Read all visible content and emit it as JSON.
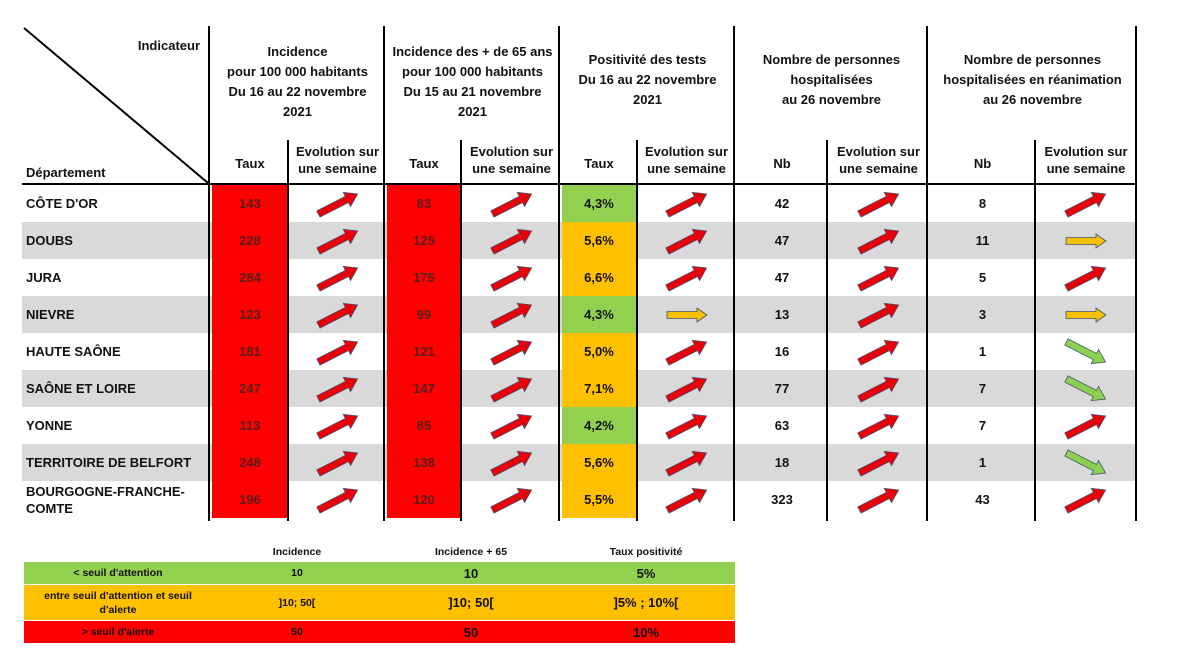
{
  "header": {
    "indicateur": "Indicateur",
    "departement": "Département",
    "groups": [
      {
        "lines": [
          "Incidence",
          "pour 100 000 habitants",
          "Du 16 au 22 novembre",
          "2021"
        ]
      },
      {
        "lines": [
          "Incidence des + de 65 ans",
          "pour 100 000 habitants",
          "Du 15 au 21 novembre",
          "2021"
        ]
      },
      {
        "lines": [
          "Positivité des tests",
          "Du 16 au 22 novembre",
          "2021"
        ]
      },
      {
        "lines": [
          "Nombre de personnes",
          "hospitalisées",
          "au 26 novembre"
        ]
      },
      {
        "lines": [
          "Nombre de personnes",
          "hospitalisées en réanimation",
          "au 26 novembre"
        ]
      }
    ],
    "subcols": [
      [
        "Taux"
      ],
      [
        "Evolution sur",
        "une semaine"
      ],
      [
        "Taux"
      ],
      [
        "Evolution sur",
        "une semaine"
      ],
      [
        "Taux"
      ],
      [
        "Evolution sur",
        "une semaine"
      ],
      [
        "Nb"
      ],
      [
        "Evolution sur",
        "une semaine"
      ],
      [
        "Nb"
      ],
      [
        "Evolution sur",
        "une semaine"
      ]
    ]
  },
  "colors": {
    "red": "#ff0000",
    "orange": "#ffc000",
    "green": "#92d050",
    "gray_band": "#d9d9d9",
    "arrow_red": "#e8000b",
    "arrow_yellow": "#f5c000",
    "arrow_green": "#8bd04e"
  },
  "rows": [
    {
      "dept": [
        "CÔTE D'OR"
      ],
      "inc": "143",
      "inc_trend": "up",
      "inc65": "83",
      "inc65_trend": "up",
      "pos": "4,3%",
      "pos_level": "green",
      "pos_trend": "up",
      "hosp": "42",
      "hosp_trend": "up",
      "rea": "8",
      "rea_trend": "up"
    },
    {
      "dept": [
        "DOUBS"
      ],
      "inc": "228",
      "inc_trend": "up",
      "inc65": "125",
      "inc65_trend": "up",
      "pos": "5,6%",
      "pos_level": "orange",
      "pos_trend": "up",
      "hosp": "47",
      "hosp_trend": "up",
      "rea": "11",
      "rea_trend": "flat"
    },
    {
      "dept": [
        "JURA"
      ],
      "inc": "284",
      "inc_trend": "up",
      "inc65": "175",
      "inc65_trend": "up",
      "pos": "6,6%",
      "pos_level": "orange",
      "pos_trend": "up",
      "hosp": "47",
      "hosp_trend": "up",
      "rea": "5",
      "rea_trend": "up"
    },
    {
      "dept": [
        "NIEVRE"
      ],
      "inc": "123",
      "inc_trend": "up",
      "inc65": "99",
      "inc65_trend": "up",
      "pos": "4,3%",
      "pos_level": "green",
      "pos_trend": "flat",
      "hosp": "13",
      "hosp_trend": "up",
      "rea": "3",
      "rea_trend": "flat"
    },
    {
      "dept": [
        "HAUTE SAÔNE"
      ],
      "inc": "181",
      "inc_trend": "up",
      "inc65": "121",
      "inc65_trend": "up",
      "pos": "5,0%",
      "pos_level": "orange",
      "pos_trend": "up",
      "hosp": "16",
      "hosp_trend": "up",
      "rea": "1",
      "rea_trend": "down"
    },
    {
      "dept": [
        "SAÔNE ET LOIRE"
      ],
      "inc": "247",
      "inc_trend": "up",
      "inc65": "147",
      "inc65_trend": "up",
      "pos": "7,1%",
      "pos_level": "orange",
      "pos_trend": "up",
      "hosp": "77",
      "hosp_trend": "up",
      "rea": "7",
      "rea_trend": "down"
    },
    {
      "dept": [
        "YONNE"
      ],
      "inc": "113",
      "inc_trend": "up",
      "inc65": "85",
      "inc65_trend": "up",
      "pos": "4,2%",
      "pos_level": "green",
      "pos_trend": "up",
      "hosp": "63",
      "hosp_trend": "up",
      "rea": "7",
      "rea_trend": "up"
    },
    {
      "dept": [
        "TERRITOIRE DE BELFORT"
      ],
      "inc": "248",
      "inc_trend": "up",
      "inc65": "138",
      "inc65_trend": "up",
      "pos": "5,6%",
      "pos_level": "orange",
      "pos_trend": "up",
      "hosp": "18",
      "hosp_trend": "up",
      "rea": "1",
      "rea_trend": "down"
    },
    {
      "dept": [
        "BOURGOGNE-FRANCHE-",
        "COMTE"
      ],
      "inc": "196",
      "inc_trend": "up",
      "inc65": "120",
      "inc65_trend": "up",
      "pos": "5,5%",
      "pos_level": "orange",
      "pos_trend": "up",
      "hosp": "323",
      "hosp_trend": "up",
      "rea": "43",
      "rea_trend": "up"
    }
  ],
  "legend": {
    "headers": [
      "Incidence",
      "Incidence + 65",
      "Taux positivité"
    ],
    "rows": [
      {
        "level": "green",
        "label": [
          "< seuil d'attention"
        ],
        "values": [
          "10",
          "10",
          "5%"
        ]
      },
      {
        "level": "orange",
        "label": [
          "entre seuil d'attention et seuil",
          "d'alerte"
        ],
        "values": [
          "]10; 50[",
          "]10; 50[",
          "]5% ; 10%["
        ]
      },
      {
        "level": "red",
        "label": [
          "> seuil d'alerte"
        ],
        "values": [
          "50",
          "50",
          "10%"
        ]
      }
    ]
  }
}
